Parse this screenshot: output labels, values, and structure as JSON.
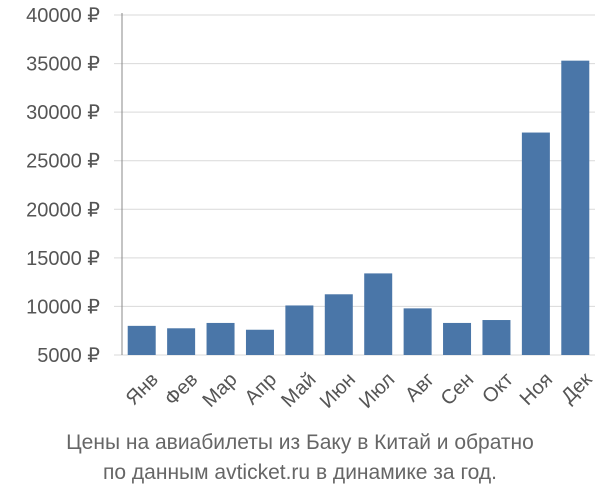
{
  "chart_data": {
    "type": "bar",
    "categories": [
      "Янв",
      "Фев",
      "Мар",
      "Апр",
      "Май",
      "Июн",
      "Июл",
      "Авг",
      "Сен",
      "Окт",
      "Ноя",
      "Дек"
    ],
    "values": [
      8000,
      7750,
      8300,
      7600,
      10100,
      11250,
      13400,
      9800,
      8300,
      8600,
      27900,
      35300
    ],
    "y_ticks": [
      5000,
      10000,
      15000,
      20000,
      25000,
      30000,
      35000,
      40000
    ],
    "y_tick_labels": [
      "5000 ₽",
      "10000 ₽",
      "15000 ₽",
      "20000 ₽",
      "25000 ₽",
      "30000 ₽",
      "35000 ₽",
      "40000 ₽"
    ],
    "ylim": [
      4000,
      40000
    ],
    "grid": true,
    "bar_color": "#4a76a8",
    "caption_lines": [
      "Цены на авиабилеты из Баку в Китай и обратно",
      "по данным avticket.ru в динамике за год."
    ]
  }
}
